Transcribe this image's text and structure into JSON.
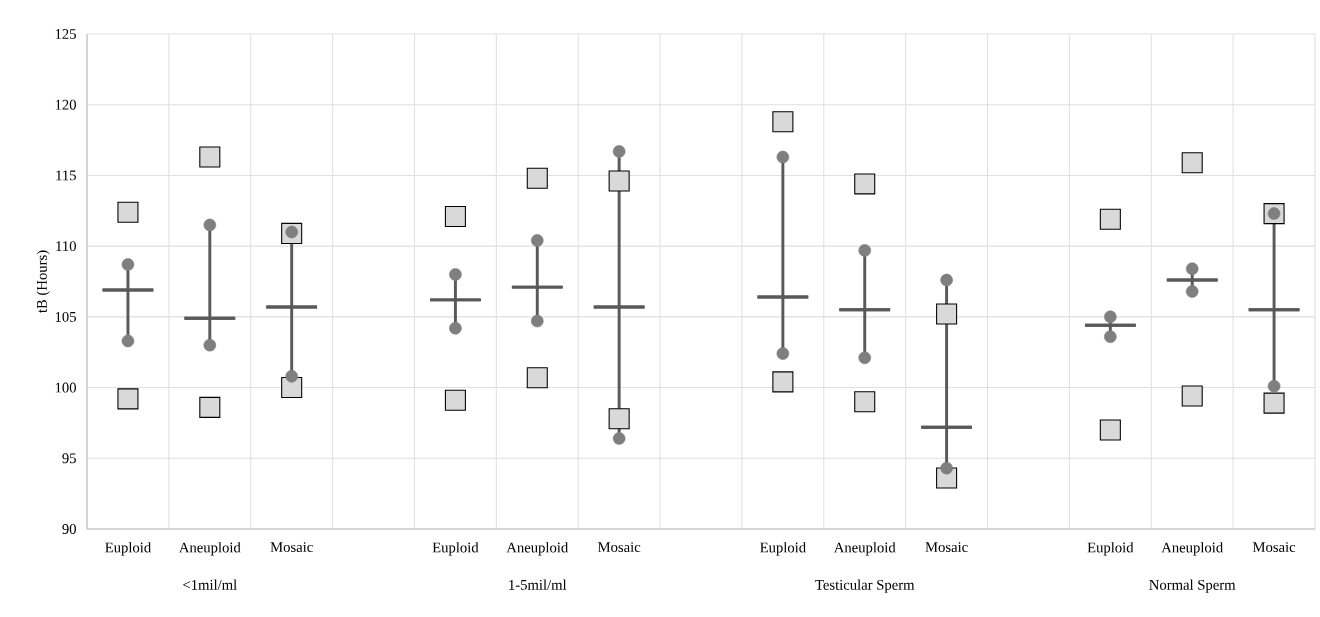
{
  "chart_data": {
    "type": "scatter",
    "categories": [
      "Euploid",
      "Aneuploid",
      "Mosaic",
      null,
      "Euploid",
      "Aneuploid",
      "Mosaic",
      null,
      "Euploid",
      "Aneuploid",
      "Mosaic",
      null,
      "Euploid",
      "Aneuploid",
      "Mosaic"
    ],
    "ylabel": "tB (Hours)",
    "annotations": [
      "<1mil/ml",
      "1-5mil/ml",
      "Testicular Sperm",
      "Normal Sperm"
    ],
    "ylim": [
      90,
      125
    ],
    "yticks": [
      90,
      95,
      100,
      105,
      110,
      115,
      120,
      125
    ],
    "grid": true,
    "series": [
      {
        "marker": "square",
        "color": "#d9d9d9",
        "values": [
          112.4,
          116.3,
          110.9,
          null,
          112.1,
          114.8,
          114.6,
          null,
          118.8,
          114.4,
          105.2,
          null,
          111.9,
          115.9,
          112.3
        ]
      },
      {
        "marker": "square",
        "color": "#d9d9d9",
        "values": [
          99.2,
          98.6,
          100.0,
          null,
          99.1,
          100.7,
          97.8,
          null,
          100.4,
          99.0,
          93.6,
          null,
          97.0,
          99.4,
          98.9
        ]
      },
      {
        "type": "box",
        "color": "#595959",
        "boxes": [
          {
            "low": 103.3,
            "q1": 106.9,
            "median": 106.9,
            "q3": 106.9,
            "high": 108.7
          },
          {
            "low": 103.0,
            "q1": 104.9,
            "median": 104.9,
            "q3": 104.9,
            "high": 111.5
          },
          {
            "low": 100.8,
            "q1": 105.7,
            "median": 105.7,
            "q3": 105.7,
            "high": 111.0
          },
          null,
          {
            "low": 104.2,
            "q1": 106.2,
            "median": 106.2,
            "q3": 106.2,
            "high": 108.0
          },
          {
            "low": 104.7,
            "q1": 107.1,
            "median": 107.1,
            "q3": 107.1,
            "high": 110.4
          },
          {
            "low": 96.4,
            "q1": 105.7,
            "median": 105.7,
            "q3": 105.7,
            "high": 116.7
          },
          null,
          {
            "low": 102.4,
            "q1": 106.4,
            "median": 106.4,
            "q3": 106.4,
            "high": 116.3
          },
          {
            "low": 102.1,
            "q1": 105.5,
            "median": 105.5,
            "q3": 105.5,
            "high": 109.7
          },
          {
            "low": 94.3,
            "q1": 97.2,
            "median": 97.2,
            "q3": 97.2,
            "high": 107.6
          },
          null,
          {
            "low": 103.6,
            "q1": 104.4,
            "median": 104.4,
            "q3": 104.4,
            "high": 105.0
          },
          {
            "low": 106.8,
            "q1": 107.6,
            "median": 107.6,
            "q3": 107.6,
            "high": 108.4
          },
          {
            "low": 100.1,
            "q1": 105.5,
            "median": 105.5,
            "q3": 105.5,
            "high": 112.3
          }
        ]
      },
      {
        "marker": "circle",
        "color": "#7f7f7f",
        "values": [
          108.7,
          111.5,
          111.0,
          null,
          108.0,
          110.4,
          116.7,
          null,
          116.3,
          109.7,
          107.6,
          null,
          105.0,
          108.4,
          112.3
        ]
      },
      {
        "marker": "circle",
        "color": "#7f7f7f",
        "values": [
          103.3,
          103.0,
          100.8,
          null,
          104.2,
          104.7,
          96.4,
          null,
          102.4,
          102.1,
          94.3,
          null,
          103.6,
          106.8,
          100.1
        ]
      }
    ]
  }
}
